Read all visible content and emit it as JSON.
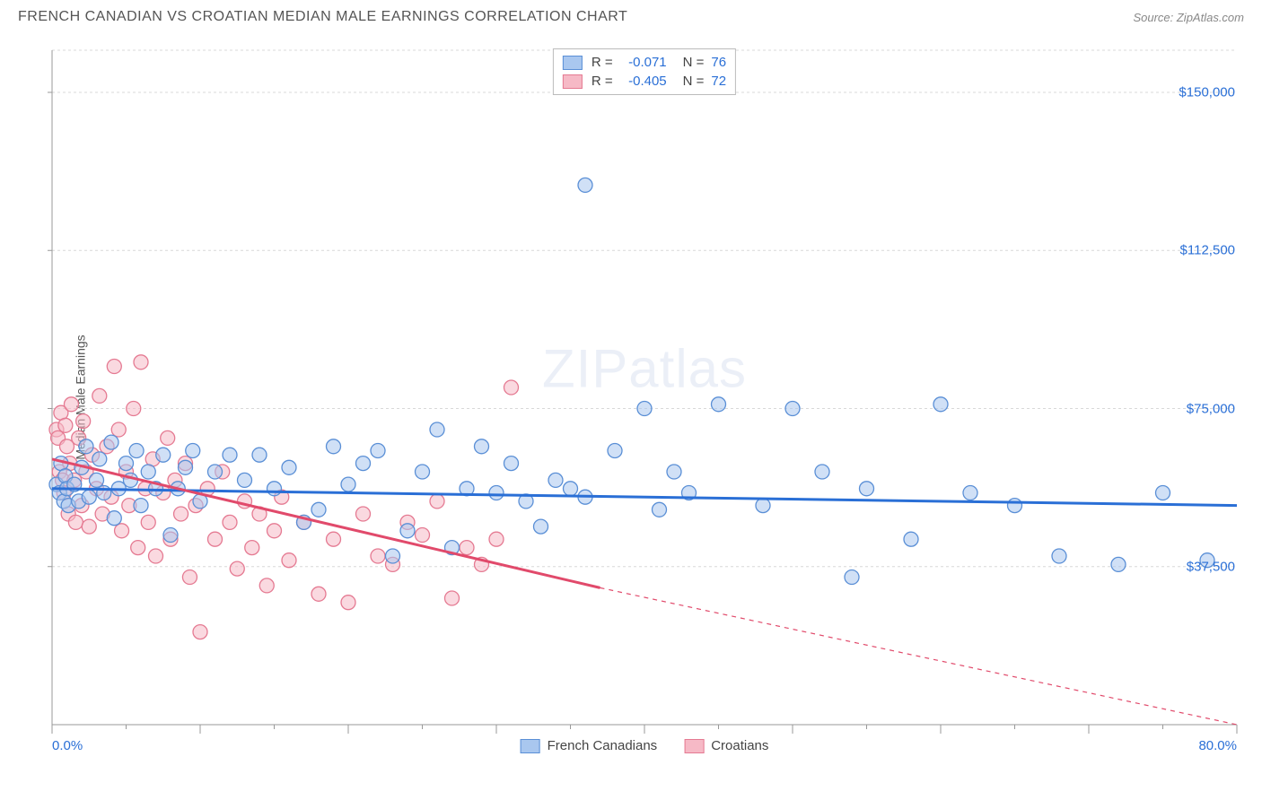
{
  "header": {
    "title": "FRENCH CANADIAN VS CROATIAN MEDIAN MALE EARNINGS CORRELATION CHART",
    "source_prefix": "Source: ",
    "source_name": "ZipAtlas.com"
  },
  "watermark": {
    "zip": "ZIP",
    "atlas": "atlas"
  },
  "chart": {
    "type": "scatter",
    "y_axis_label": "Median Male Earnings",
    "xlim": [
      0,
      80
    ],
    "ylim": [
      0,
      160000
    ],
    "x_tick_labels": {
      "left": "0.0%",
      "right": "80.0%"
    },
    "x_ticks_major": [
      0,
      10,
      20,
      30,
      40,
      50,
      60,
      70,
      80
    ],
    "x_ticks_minor": [
      5,
      15,
      25,
      35,
      45,
      55,
      65,
      75
    ],
    "y_ticks": [
      {
        "v": 37500,
        "label": "$37,500"
      },
      {
        "v": 75000,
        "label": "$75,000"
      },
      {
        "v": 112500,
        "label": "$112,500"
      },
      {
        "v": 150000,
        "label": "$150,000"
      }
    ],
    "grid_color": "#d8d8d8",
    "axis_color": "#999999",
    "background_color": "#ffffff",
    "marker_radius": 8,
    "marker_stroke_width": 1.3,
    "trend_line_width": 3,
    "series": [
      {
        "name": "French Canadians",
        "label": "French Canadians",
        "fill": "#a9c7ef",
        "stroke": "#5a8fd6",
        "fill_opacity": 0.55,
        "line_color": "#2a6fd6",
        "R": "-0.071",
        "N": "76",
        "trend": {
          "x1": 0,
          "y1": 56000,
          "x2": 80,
          "y2": 52000,
          "solid_to_x": 80
        },
        "points": [
          [
            0.3,
            57000
          ],
          [
            0.5,
            55000
          ],
          [
            0.6,
            62000
          ],
          [
            0.8,
            53000
          ],
          [
            0.9,
            59000
          ],
          [
            1.0,
            56000
          ],
          [
            1.1,
            52000
          ],
          [
            1.5,
            57000
          ],
          [
            1.8,
            53000
          ],
          [
            2.0,
            61000
          ],
          [
            2.3,
            66000
          ],
          [
            2.5,
            54000
          ],
          [
            3.0,
            58000
          ],
          [
            3.2,
            63000
          ],
          [
            3.5,
            55000
          ],
          [
            4.0,
            67000
          ],
          [
            4.2,
            49000
          ],
          [
            4.5,
            56000
          ],
          [
            5.0,
            62000
          ],
          [
            5.3,
            58000
          ],
          [
            5.7,
            65000
          ],
          [
            6.0,
            52000
          ],
          [
            6.5,
            60000
          ],
          [
            7.0,
            56000
          ],
          [
            7.5,
            64000
          ],
          [
            8.0,
            45000
          ],
          [
            8.5,
            56000
          ],
          [
            9.0,
            61000
          ],
          [
            9.5,
            65000
          ],
          [
            10,
            53000
          ],
          [
            11,
            60000
          ],
          [
            12,
            64000
          ],
          [
            13,
            58000
          ],
          [
            14,
            64000
          ],
          [
            15,
            56000
          ],
          [
            16,
            61000
          ],
          [
            17,
            48000
          ],
          [
            18,
            51000
          ],
          [
            19,
            66000
          ],
          [
            20,
            57000
          ],
          [
            21,
            62000
          ],
          [
            22,
            65000
          ],
          [
            23,
            40000
          ],
          [
            24,
            46000
          ],
          [
            25,
            60000
          ],
          [
            26,
            70000
          ],
          [
            27,
            42000
          ],
          [
            28,
            56000
          ],
          [
            29,
            66000
          ],
          [
            30,
            55000
          ],
          [
            31,
            62000
          ],
          [
            32,
            53000
          ],
          [
            33,
            47000
          ],
          [
            34,
            58000
          ],
          [
            35,
            56000
          ],
          [
            36,
            54000
          ],
          [
            36,
            128000
          ],
          [
            38,
            65000
          ],
          [
            40,
            75000
          ],
          [
            41,
            51000
          ],
          [
            42,
            60000
          ],
          [
            43,
            55000
          ],
          [
            45,
            76000
          ],
          [
            48,
            52000
          ],
          [
            50,
            75000
          ],
          [
            52,
            60000
          ],
          [
            54,
            35000
          ],
          [
            55,
            56000
          ],
          [
            58,
            44000
          ],
          [
            60,
            76000
          ],
          [
            62,
            55000
          ],
          [
            65,
            52000
          ],
          [
            68,
            40000
          ],
          [
            72,
            38000
          ],
          [
            75,
            55000
          ],
          [
            78,
            39000
          ]
        ]
      },
      {
        "name": "Croatians",
        "label": "Croatians",
        "fill": "#f6b9c6",
        "stroke": "#e57a92",
        "fill_opacity": 0.55,
        "line_color": "#e14a6b",
        "R": "-0.405",
        "N": "72",
        "trend": {
          "x1": 0,
          "y1": 63000,
          "x2": 80,
          "y2": -3000,
          "solid_to_x": 37
        },
        "points": [
          [
            0.3,
            70000
          ],
          [
            0.4,
            68000
          ],
          [
            0.5,
            60000
          ],
          [
            0.6,
            74000
          ],
          [
            0.7,
            58000
          ],
          [
            0.8,
            55000
          ],
          [
            0.9,
            71000
          ],
          [
            1.0,
            66000
          ],
          [
            1.1,
            50000
          ],
          [
            1.2,
            62000
          ],
          [
            1.3,
            76000
          ],
          [
            1.5,
            58000
          ],
          [
            1.6,
            48000
          ],
          [
            1.8,
            68000
          ],
          [
            2.0,
            52000
          ],
          [
            2.1,
            72000
          ],
          [
            2.3,
            60000
          ],
          [
            2.5,
            47000
          ],
          [
            2.7,
            64000
          ],
          [
            3.0,
            56000
          ],
          [
            3.2,
            78000
          ],
          [
            3.4,
            50000
          ],
          [
            3.7,
            66000
          ],
          [
            4.0,
            54000
          ],
          [
            4.2,
            85000
          ],
          [
            4.5,
            70000
          ],
          [
            4.7,
            46000
          ],
          [
            5.0,
            60000
          ],
          [
            5.2,
            52000
          ],
          [
            5.5,
            75000
          ],
          [
            5.8,
            42000
          ],
          [
            6.0,
            86000
          ],
          [
            6.3,
            56000
          ],
          [
            6.5,
            48000
          ],
          [
            6.8,
            63000
          ],
          [
            7.0,
            40000
          ],
          [
            7.5,
            55000
          ],
          [
            7.8,
            68000
          ],
          [
            8.0,
            44000
          ],
          [
            8.3,
            58000
          ],
          [
            8.7,
            50000
          ],
          [
            9.0,
            62000
          ],
          [
            9.3,
            35000
          ],
          [
            9.7,
            52000
          ],
          [
            10,
            22000
          ],
          [
            10.5,
            56000
          ],
          [
            11,
            44000
          ],
          [
            11.5,
            60000
          ],
          [
            12,
            48000
          ],
          [
            12.5,
            37000
          ],
          [
            13,
            53000
          ],
          [
            13.5,
            42000
          ],
          [
            14,
            50000
          ],
          [
            14.5,
            33000
          ],
          [
            15,
            46000
          ],
          [
            15.5,
            54000
          ],
          [
            16,
            39000
          ],
          [
            17,
            48000
          ],
          [
            18,
            31000
          ],
          [
            19,
            44000
          ],
          [
            20,
            29000
          ],
          [
            21,
            50000
          ],
          [
            22,
            40000
          ],
          [
            23,
            38000
          ],
          [
            24,
            48000
          ],
          [
            25,
            45000
          ],
          [
            26,
            53000
          ],
          [
            27,
            30000
          ],
          [
            28,
            42000
          ],
          [
            29,
            38000
          ],
          [
            30,
            44000
          ],
          [
            31,
            80000
          ]
        ]
      }
    ],
    "legend_bottom_labels": [
      "French Canadians",
      "Croatians"
    ]
  }
}
